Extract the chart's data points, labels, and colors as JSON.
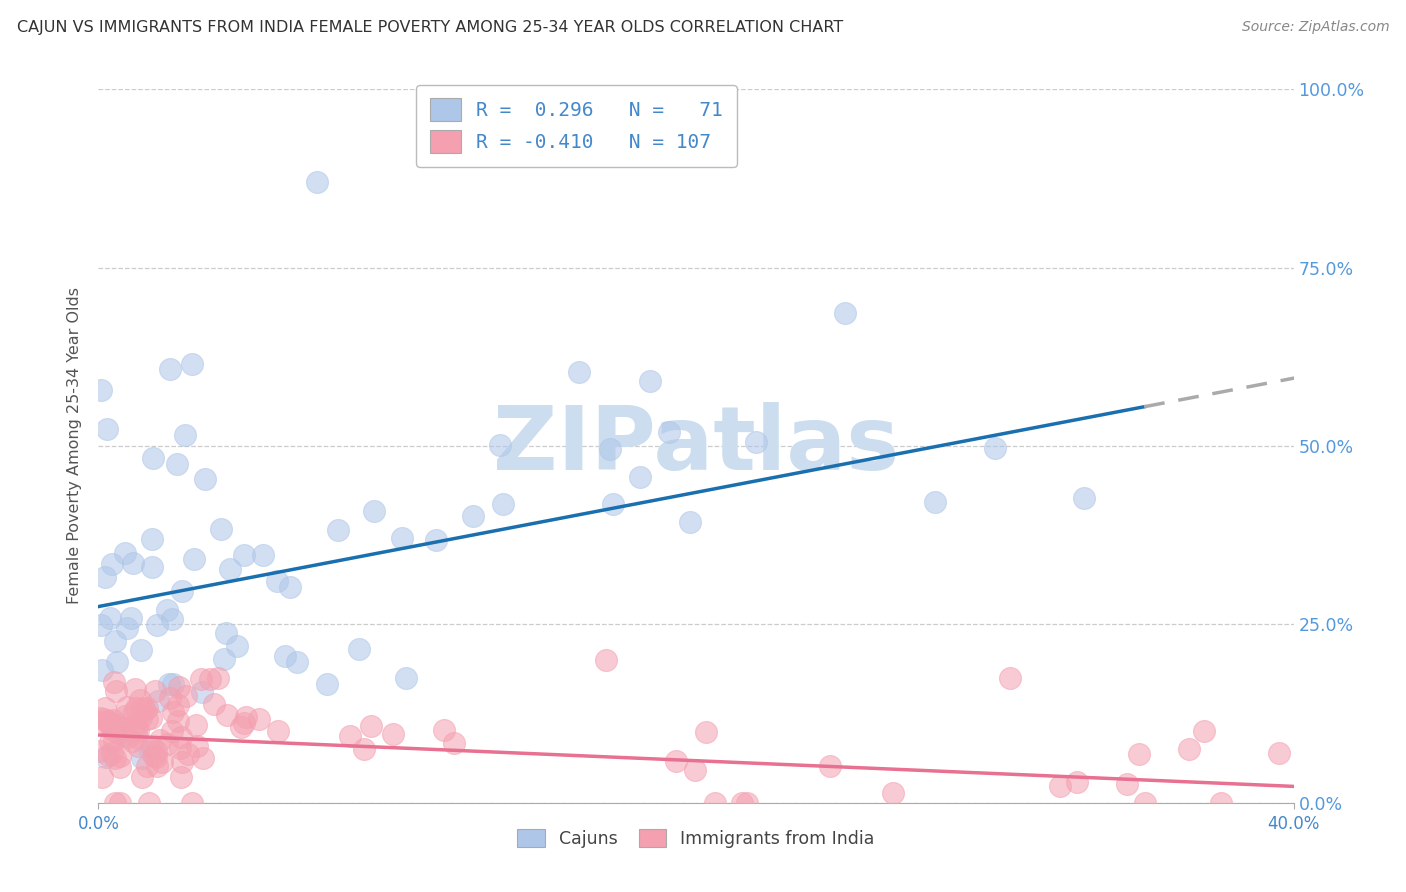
{
  "title": "CAJUN VS IMMIGRANTS FROM INDIA FEMALE POVERTY AMONG 25-34 YEAR OLDS CORRELATION CHART",
  "source": "Source: ZipAtlas.com",
  "ylabel": "Female Poverty Among 25-34 Year Olds",
  "xlim": [
    0.0,
    0.4
  ],
  "ylim": [
    0.0,
    1.0
  ],
  "xtick_vals": [
    0.0,
    0.4
  ],
  "xticklabels": [
    "0.0%",
    "40.0%"
  ],
  "ytick_vals": [
    0.0,
    0.25,
    0.5,
    0.75,
    1.0
  ],
  "yticklabels_right": [
    "0.0%",
    "25.0%",
    "50.0%",
    "75.0%",
    "100.0%"
  ],
  "blue_fill": "#aec6e8",
  "pink_fill": "#f4a0b0",
  "line_blue": "#1a6faf",
  "line_pink": "#e87090",
  "line_dash_color": "#aaaaaa",
  "right_label_color": "#5599dd",
  "grid_color": "#cccccc",
  "title_color": "#333333",
  "source_color": "#888888",
  "watermark_color": "#ccddef",
  "ylabel_color": "#555555",
  "legend_text_color": "#4488cc",
  "bottom_legend_color": "#444444",
  "R_cajun": 0.296,
  "N_cajun": 71,
  "R_india": -0.41,
  "N_india": 107,
  "blue_line_intercept": 0.275,
  "blue_line_slope": 0.8,
  "pink_line_intercept": 0.095,
  "pink_line_slope": -0.18
}
